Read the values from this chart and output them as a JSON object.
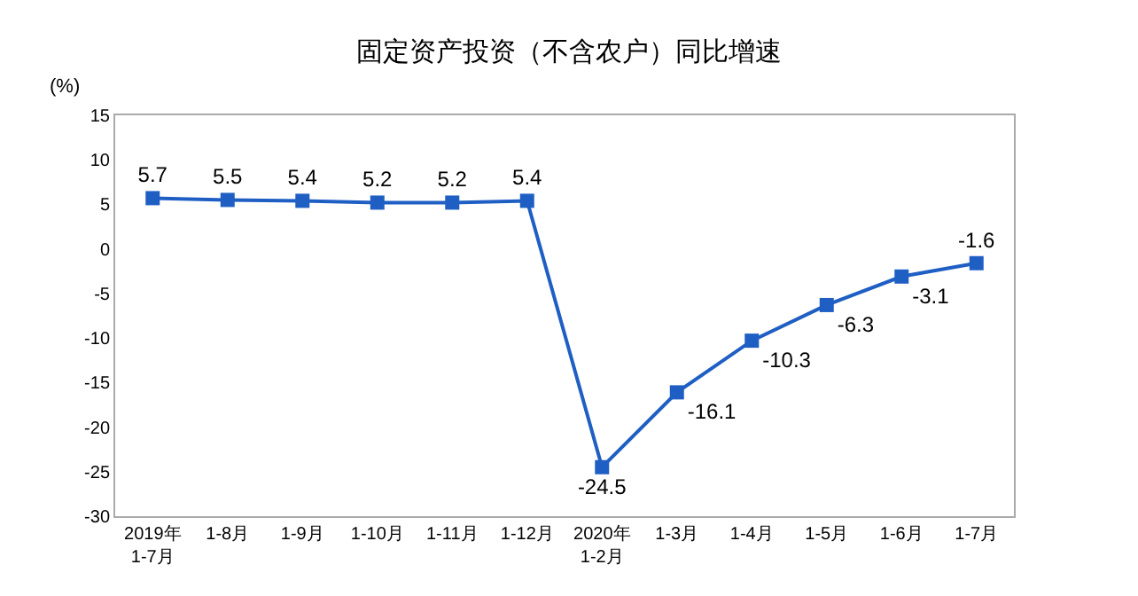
{
  "chart_data": {
    "type": "line",
    "title": "固定资产投资（不含农户）同比增速",
    "ylabel": "(%)",
    "categories": [
      "2019年\n1-7月",
      "1-8月",
      "1-9月",
      "1-10月",
      "1-11月",
      "1-12月",
      "2020年\n1-2月",
      "1-3月",
      "1-4月",
      "1-5月",
      "1-6月",
      "1-7月"
    ],
    "series": [
      {
        "color": "#1f5fc4",
        "values": [
          5.7,
          5.5,
          5.4,
          5.2,
          5.2,
          5.4,
          -24.5,
          -16.1,
          -10.3,
          -6.3,
          -3.1,
          -1.6
        ]
      }
    ],
    "ylim": [
      -30,
      15
    ],
    "yticks": [
      -30,
      -25,
      -20,
      -15,
      -10,
      -5,
      0,
      5,
      10,
      15
    ],
    "grid": false,
    "marker": "square",
    "line_style": "solid",
    "data_labels": true
  }
}
